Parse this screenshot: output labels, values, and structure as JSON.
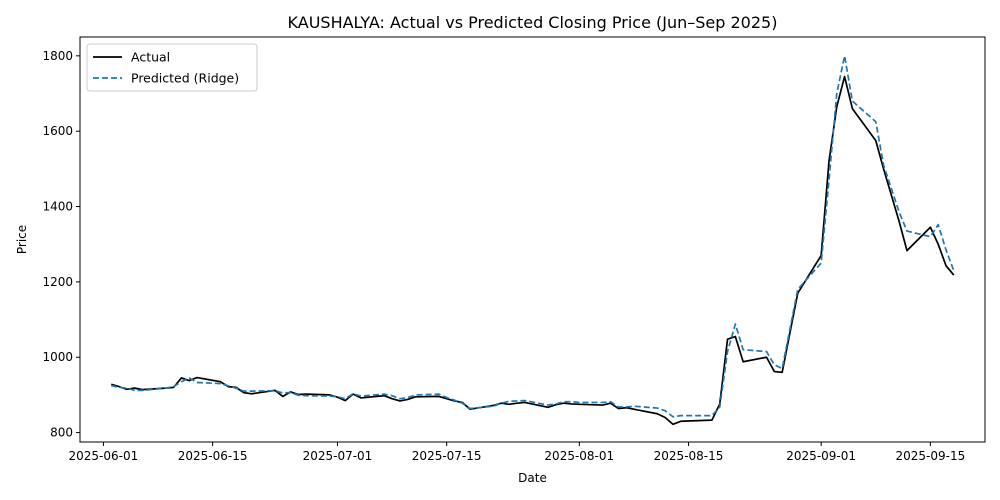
{
  "chart_data": {
    "type": "line",
    "title": "KAUSHALYA: Actual vs Predicted Closing Price (Jun–Sep 2025)",
    "xlabel": "Date",
    "ylabel": "Price",
    "xlim": [
      "2025-05-29",
      "2025-09-22"
    ],
    "ylim": [
      775,
      1850
    ],
    "x_ticks": [
      "2025-06-01",
      "2025-06-15",
      "2025-07-01",
      "2025-07-15",
      "2025-08-01",
      "2025-08-15",
      "2025-09-01",
      "2025-09-15"
    ],
    "y_ticks": [
      800,
      1000,
      1200,
      1400,
      1600,
      1800
    ],
    "grid": false,
    "legend_position": "top-left",
    "colors": {
      "actual": "#000000",
      "predicted": "#1f77b4"
    },
    "series": [
      {
        "name": "Actual",
        "style": "solid",
        "x": [
          "2025-06-02",
          "2025-06-03",
          "2025-06-04",
          "2025-06-05",
          "2025-06-06",
          "2025-06-09",
          "2025-06-10",
          "2025-06-11",
          "2025-06-12",
          "2025-06-13",
          "2025-06-16",
          "2025-06-17",
          "2025-06-18",
          "2025-06-19",
          "2025-06-20",
          "2025-06-23",
          "2025-06-24",
          "2025-06-25",
          "2025-06-26",
          "2025-06-27",
          "2025-06-30",
          "2025-07-01",
          "2025-07-02",
          "2025-07-03",
          "2025-07-04",
          "2025-07-07",
          "2025-07-08",
          "2025-07-09",
          "2025-07-10",
          "2025-07-11",
          "2025-07-14",
          "2025-07-15",
          "2025-07-16",
          "2025-07-17",
          "2025-07-18",
          "2025-07-21",
          "2025-07-22",
          "2025-07-23",
          "2025-07-24",
          "2025-07-25",
          "2025-07-28",
          "2025-07-29",
          "2025-07-30",
          "2025-07-31",
          "2025-08-01",
          "2025-08-04",
          "2025-08-05",
          "2025-08-06",
          "2025-08-07",
          "2025-08-08",
          "2025-08-11",
          "2025-08-12",
          "2025-08-13",
          "2025-08-14",
          "2025-08-18",
          "2025-08-19",
          "2025-08-20",
          "2025-08-21",
          "2025-08-22",
          "2025-08-25",
          "2025-08-26",
          "2025-08-27",
          "2025-08-29",
          "2025-09-01",
          "2025-09-02",
          "2025-09-03",
          "2025-09-04",
          "2025-09-05",
          "2025-09-08",
          "2025-09-09",
          "2025-09-11",
          "2025-09-12",
          "2025-09-15",
          "2025-09-16",
          "2025-09-17",
          "2025-09-18"
        ],
        "y": [
          928,
          922,
          915,
          918,
          914,
          918,
          920,
          945,
          938,
          946,
          935,
          922,
          920,
          906,
          903,
          912,
          896,
          908,
          901,
          902,
          900,
          894,
          885,
          902,
          892,
          898,
          890,
          884,
          888,
          895,
          896,
          890,
          884,
          880,
          862,
          872,
          878,
          875,
          878,
          880,
          867,
          874,
          878,
          876,
          875,
          873,
          878,
          864,
          866,
          862,
          850,
          840,
          822,
          830,
          833,
          876,
          1048,
          1055,
          988,
          1000,
          962,
          960,
          1170,
          1270,
          1520,
          1665,
          1745,
          1660,
          1575,
          1500,
          1360,
          1283,
          1345,
          1300,
          1243,
          1218
        ]
      },
      {
        "name": "Predicted (Ridge)",
        "style": "dashed",
        "x": [
          "2025-06-02",
          "2025-06-03",
          "2025-06-04",
          "2025-06-05",
          "2025-06-06",
          "2025-06-09",
          "2025-06-10",
          "2025-06-11",
          "2025-06-12",
          "2025-06-13",
          "2025-06-16",
          "2025-06-17",
          "2025-06-18",
          "2025-06-19",
          "2025-06-20",
          "2025-06-23",
          "2025-06-24",
          "2025-06-25",
          "2025-06-26",
          "2025-06-27",
          "2025-06-30",
          "2025-07-01",
          "2025-07-02",
          "2025-07-03",
          "2025-07-04",
          "2025-07-07",
          "2025-07-08",
          "2025-07-09",
          "2025-07-10",
          "2025-07-11",
          "2025-07-14",
          "2025-07-15",
          "2025-07-16",
          "2025-07-17",
          "2025-07-18",
          "2025-07-21",
          "2025-07-22",
          "2025-07-23",
          "2025-07-24",
          "2025-07-25",
          "2025-07-28",
          "2025-07-29",
          "2025-07-30",
          "2025-07-31",
          "2025-08-01",
          "2025-08-04",
          "2025-08-05",
          "2025-08-06",
          "2025-08-07",
          "2025-08-08",
          "2025-08-11",
          "2025-08-12",
          "2025-08-13",
          "2025-08-14",
          "2025-08-18",
          "2025-08-19",
          "2025-08-20",
          "2025-08-21",
          "2025-08-22",
          "2025-08-25",
          "2025-08-26",
          "2025-08-27",
          "2025-08-29",
          "2025-09-01",
          "2025-09-02",
          "2025-09-03",
          "2025-09-04",
          "2025-09-05",
          "2025-09-08",
          "2025-09-09",
          "2025-09-11",
          "2025-09-12",
          "2025-09-15",
          "2025-09-16",
          "2025-09-17",
          "2025-09-18"
        ],
        "y": [
          925,
          920,
          918,
          912,
          912,
          918,
          922,
          935,
          945,
          933,
          930,
          924,
          918,
          910,
          910,
          911,
          905,
          906,
          899,
          898,
          897,
          895,
          890,
          903,
          897,
          902,
          898,
          890,
          893,
          900,
          902,
          893,
          886,
          878,
          864,
          870,
          878,
          883,
          884,
          885,
          873,
          876,
          882,
          882,
          880,
          880,
          882,
          868,
          868,
          870,
          865,
          858,
          842,
          845,
          845,
          868,
          1015,
          1088,
          1020,
          1015,
          980,
          970,
          1180,
          1250,
          1470,
          1700,
          1800,
          1680,
          1625,
          1510,
          1385,
          1335,
          1320,
          1352,
          1285,
          1230
        ]
      }
    ]
  }
}
